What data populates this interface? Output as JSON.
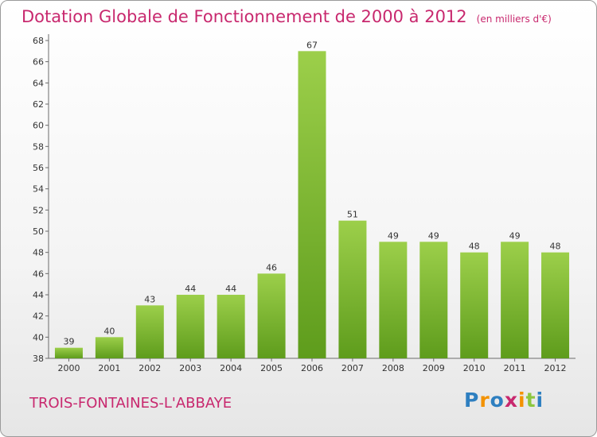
{
  "header": {
    "title": "Dotation Globale de Fonctionnement de 2000 à 2012",
    "subtitle": "(en milliers d'€)"
  },
  "footer": {
    "town": "TROIS-FONTAINES-L'ABBAYE",
    "logo": "Proxiti",
    "logo_colors": [
      "#2e7fc0",
      "#f39200",
      "#2e7fc0",
      "#c8286e",
      "#f39200",
      "#8cc63f",
      "#2e7fc0"
    ]
  },
  "colors": {
    "accent": "#c8286e",
    "bar_top": "#9ccf4a",
    "bar_bottom": "#5e9c1c"
  },
  "chart_data": {
    "type": "bar",
    "title": "Dotation Globale de Fonctionnement de 2000 à 2012",
    "subtitle": "(en milliers d'€)",
    "categories": [
      "2000",
      "2001",
      "2002",
      "2003",
      "2004",
      "2005",
      "2006",
      "2007",
      "2008",
      "2009",
      "2010",
      "2011",
      "2012"
    ],
    "values": [
      39,
      40,
      43,
      44,
      44,
      46,
      67,
      51,
      49,
      49,
      48,
      49,
      48
    ],
    "ylim": [
      38,
      68
    ],
    "yticks": [
      38,
      40,
      42,
      44,
      46,
      48,
      50,
      52,
      54,
      56,
      58,
      60,
      62,
      64,
      66,
      68
    ],
    "grid": false,
    "data_labels": true
  }
}
